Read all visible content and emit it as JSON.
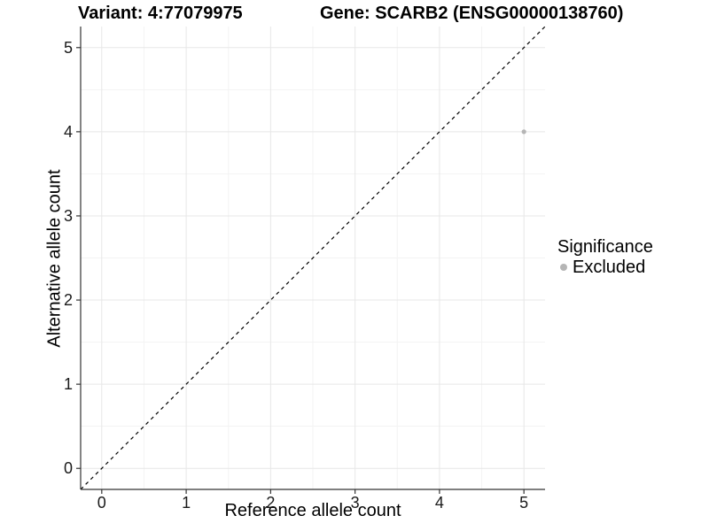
{
  "chart_data": {
    "type": "scatter",
    "title_left": "Variant: 4:77079975",
    "title_right": "Gene: SCARB2 (ENSG00000138760)",
    "xlabel": "Reference allele count",
    "ylabel": "Alternative allele count",
    "xlim": [
      -0.25,
      5.25
    ],
    "ylim": [
      -0.25,
      5.25
    ],
    "xticks": [
      0,
      1,
      2,
      3,
      4,
      5
    ],
    "yticks": [
      0,
      1,
      2,
      3,
      4,
      5
    ],
    "xminor": [
      0.5,
      1.5,
      2.5,
      3.5,
      4.5
    ],
    "yminor": [
      0.5,
      1.5,
      2.5,
      3.5,
      4.5
    ],
    "grid": "major+minor",
    "identity_line": {
      "style": "dashed",
      "slope": 1,
      "intercept": 0,
      "color": "#000000"
    },
    "series": [
      {
        "name": "Excluded",
        "color": "#b5b5b5",
        "points": [
          {
            "x": 5,
            "y": 4
          }
        ]
      }
    ],
    "legend": {
      "position": "right",
      "title": "Significance",
      "entries": [
        {
          "label": "Excluded",
          "color": "#b5b5b5",
          "marker": "circle"
        }
      ]
    },
    "colors": {
      "background": "#ffffff",
      "grid_major": "#e7e7e7",
      "grid_minor": "#f3f3f3",
      "axis": "#333333",
      "tick_label": "#1a1a1a",
      "title": "#000000"
    }
  }
}
